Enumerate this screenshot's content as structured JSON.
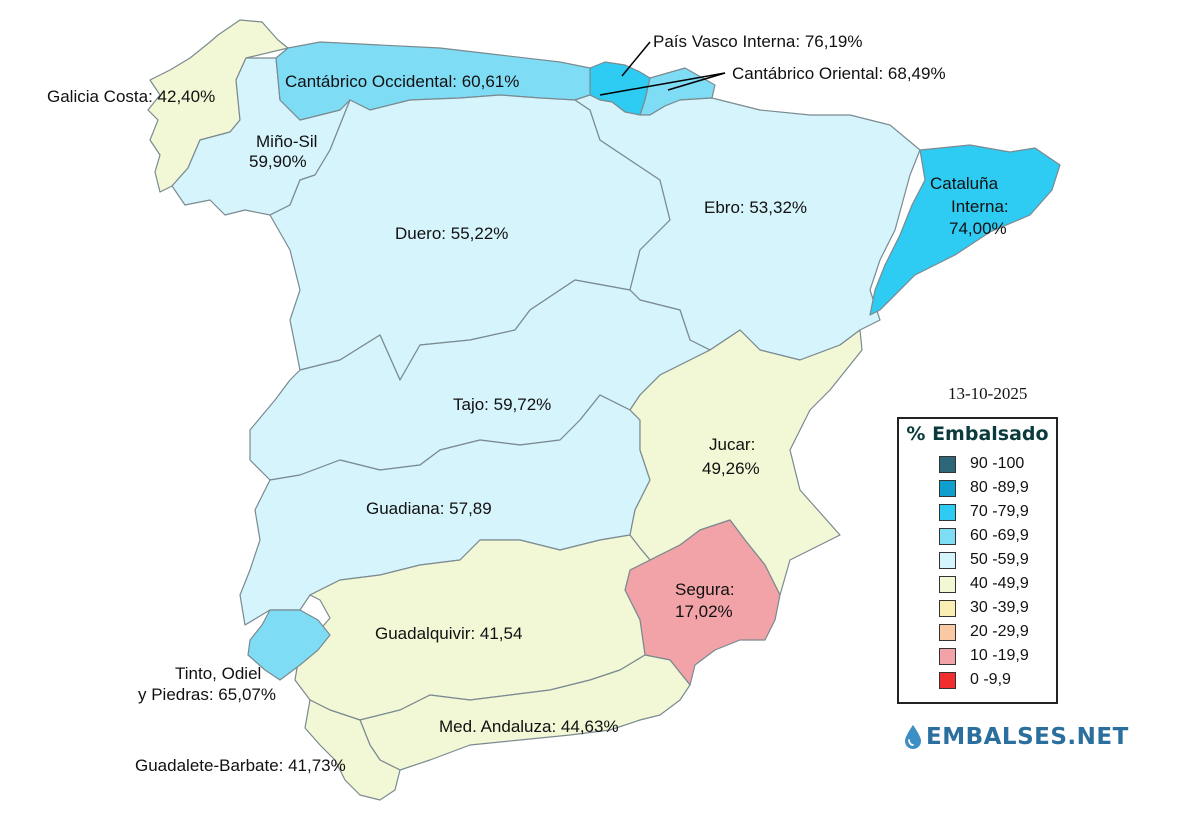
{
  "date": "13-10-2025",
  "legend": {
    "title": "% Embalsado",
    "items": [
      {
        "range": "90 -100",
        "color": "#2d6677"
      },
      {
        "range": "80 -89,9",
        "color": "#0e9fcf"
      },
      {
        "range": "70 -79,9",
        "color": "#2ecbf2"
      },
      {
        "range": "60 -69,9",
        "color": "#7fdcf5"
      },
      {
        "range": "50 -59,9",
        "color": "#d6f4fc"
      },
      {
        "range": "40 -49,9",
        "color": "#f2f8d6"
      },
      {
        "range": "30 -39,9",
        "color": "#fbeeb3"
      },
      {
        "range": "20 -29,9",
        "color": "#f9c9a3"
      },
      {
        "range": "10 -19,9",
        "color": "#f2a3a8"
      },
      {
        "range": "0 -9,9",
        "color": "#f22d2d"
      }
    ]
  },
  "basins": {
    "galicia_costa": {
      "label": "Galicia Costa: 42,40%",
      "pct": 42.4,
      "color": "#f2f8d6"
    },
    "mino_sil": {
      "line1": "Miño-Sil",
      "line2": "59,90%",
      "pct": 59.9,
      "color": "#d6f4fc"
    },
    "cantabrico_occidental": {
      "label": "Cantábrico Occidental: 60,61%",
      "pct": 60.61,
      "color": "#7fdcf5"
    },
    "pais_vasco_interna": {
      "label": "País Vasco Interna: 76,19%",
      "pct": 76.19,
      "color": "#2ecbf2"
    },
    "cantabrico_oriental": {
      "label": "Cantábrico Oriental: 68,49%",
      "pct": 68.49,
      "color": "#7fdcf5"
    },
    "duero": {
      "label": "Duero: 55,22%",
      "pct": 55.22,
      "color": "#d6f4fc"
    },
    "ebro": {
      "label": "Ebro: 53,32%",
      "pct": 53.32,
      "color": "#d6f4fc"
    },
    "cataluna_interna": {
      "line1": "Cataluña",
      "line2": "Interna:",
      "line3": "74,00%",
      "pct": 74.0,
      "color": "#2ecbf2"
    },
    "tajo": {
      "label": "Tajo: 59,72%",
      "pct": 59.72,
      "color": "#d6f4fc"
    },
    "jucar": {
      "line1": "Jucar:",
      "line2": "49,26%",
      "pct": 49.26,
      "color": "#f2f8d6"
    },
    "guadiana": {
      "label": "Guadiana: 57,89",
      "pct": 57.89,
      "color": "#d6f4fc"
    },
    "segura": {
      "line1": "Segura:",
      "line2": "17,02%",
      "pct": 17.02,
      "color": "#f2a3a8"
    },
    "guadalquivir": {
      "label": "Guadalquivir: 41,54",
      "pct": 41.54,
      "color": "#f2f8d6"
    },
    "tinto_odiel": {
      "line1": "Tinto, Odiel",
      "line2": "y Piedras: 65,07%",
      "pct": 65.07,
      "color": "#7fdcf5"
    },
    "med_andaluza": {
      "label": "Med. Andaluza: 44,63%",
      "pct": 44.63,
      "color": "#f2f8d6"
    },
    "guadalete_barbate": {
      "label": "Guadalete-Barbate: 41,73%",
      "pct": 41.73,
      "color": "#f2f8d6"
    }
  },
  "logo": {
    "text": "EMBALSES.NET",
    "color": "#2a6f9e"
  }
}
